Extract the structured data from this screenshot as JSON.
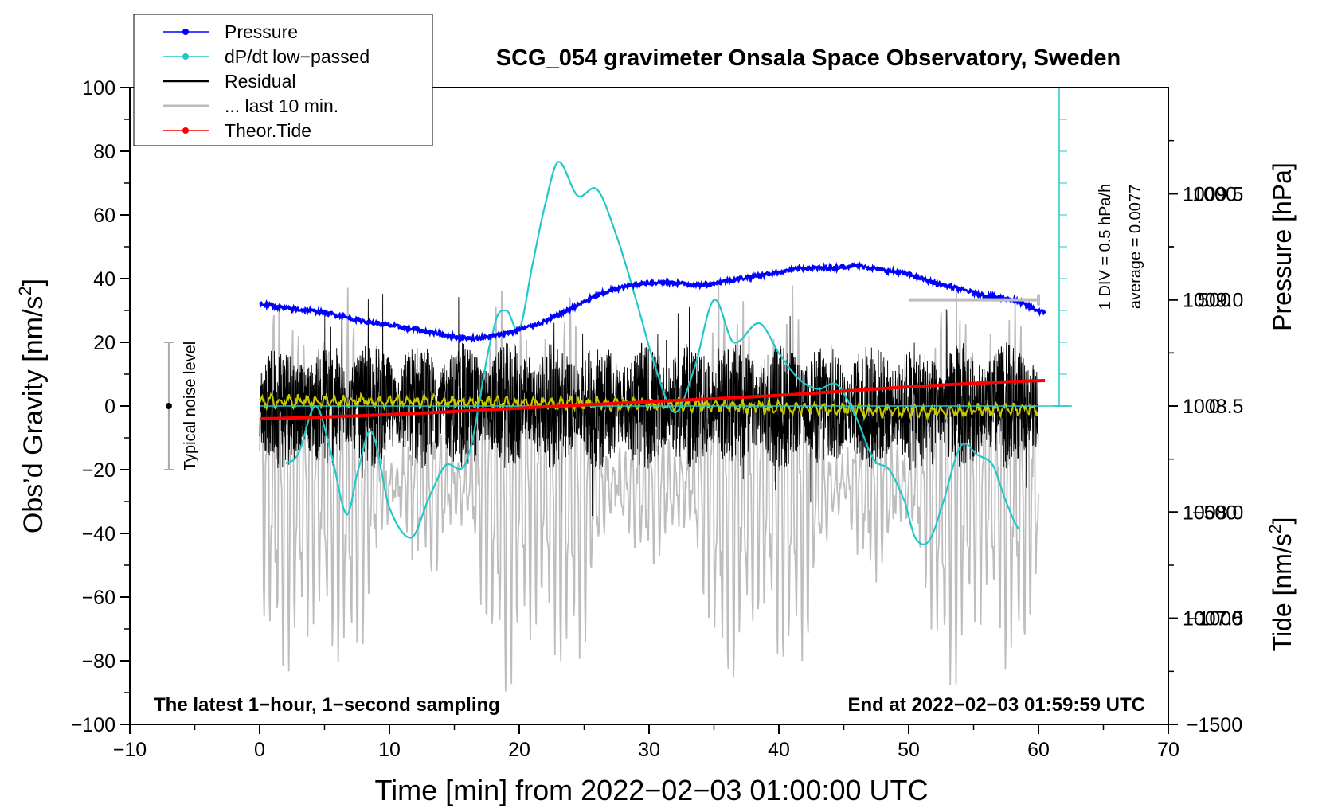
{
  "chart_data": {
    "type": "line",
    "title": "SCG_054 gravimeter Onsala Space Observatory, Sweden",
    "xlabel": "Time [min] from 2022−02−03 01:00:00 UTC",
    "ylabel_left": "Obs’d Gravity [nm/s",
    "ylabel_left_sup": "2",
    "ylabel_left_close": "]",
    "ylabel_pressure": "Pressure [hPa]",
    "ylabel_tide": "Tide [nm/s",
    "ylabel_tide_sup": "2",
    "ylabel_tide_close": "]",
    "xlim": [
      -10,
      70
    ],
    "ylim": [
      -100,
      100
    ],
    "x_ticks": [
      "−10",
      "0",
      "10",
      "20",
      "30",
      "40",
      "50",
      "60",
      "70"
    ],
    "x_tick_values": [
      -10,
      0,
      10,
      20,
      30,
      40,
      50,
      60,
      70
    ],
    "y_ticks": [
      "100",
      "80",
      "60",
      "40",
      "20",
      "0",
      "−20",
      "−40",
      "−60",
      "−80",
      "−100"
    ],
    "y_tick_values": [
      100,
      80,
      60,
      40,
      20,
      0,
      -20,
      -40,
      -60,
      -80,
      -100
    ],
    "pressure_axis": {
      "range": [
        1007.0,
        1010.0
      ],
      "ticks": [
        "1009.5",
        "1009.0",
        "1008.5",
        "1008.0",
        "1007.5"
      ],
      "tick_values": [
        1009.5,
        1009.0,
        1008.5,
        1008.0,
        1007.5
      ]
    },
    "tide_axis": {
      "range": [
        -1500,
        1500
      ],
      "ticks": [
        "1000",
        "500",
        "0",
        "−500",
        "−1000",
        "−1500"
      ],
      "tick_values": [
        1000,
        500,
        0,
        -500,
        -1000,
        -1500
      ]
    },
    "legend": [
      {
        "label": "Pressure",
        "color": "#0000ff",
        "marker": true
      },
      {
        "label": "dP/dt low−passed",
        "color": "#20c8c8",
        "marker": true
      },
      {
        "label": "Residual",
        "color": "#000000",
        "marker": false
      },
      {
        "label": "... last 10 min.",
        "color": "#bbbbbb",
        "marker": false
      },
      {
        "label": "Theor.Tide",
        "color": "#ff0000",
        "marker": true
      }
    ],
    "legend_position": "top-left",
    "annotations": {
      "noise_label": "Typical noise level",
      "noise_range": [
        -20,
        20
      ],
      "div_label": "1 DIV = 0.5 hPa/h",
      "average_label": "average = 0.0077",
      "bottom_left": "The latest 1−hour, 1−second sampling",
      "bottom_right": "End at 2022−02−03 01:59:59 UTC",
      "last10_bar_range_min": [
        50,
        60
      ]
    },
    "series": [
      {
        "name": "Pressure",
        "axis": "pressure",
        "color": "#0000ff",
        "x": [
          0,
          2,
          5,
          8,
          10,
          13,
          16,
          18,
          20,
          22,
          24,
          26,
          28,
          30,
          32,
          34,
          36,
          38,
          40,
          42,
          44,
          46,
          48,
          50,
          52,
          54,
          56,
          58,
          60.5
        ],
        "y": [
          1008.98,
          1008.96,
          1008.94,
          1008.9,
          1008.88,
          1008.85,
          1008.82,
          1008.83,
          1008.86,
          1008.9,
          1008.96,
          1009.02,
          1009.06,
          1009.08,
          1009.08,
          1009.07,
          1009.09,
          1009.11,
          1009.13,
          1009.15,
          1009.15,
          1009.16,
          1009.14,
          1009.12,
          1009.08,
          1009.05,
          1009.02,
          1009.0,
          1008.94
        ]
      },
      {
        "name": "dP/dt low-passed",
        "axis": "pressure",
        "color": "#20c8c8",
        "baseline": 1008.5,
        "x": [
          2,
          3,
          4.3,
          5.5,
          6.7,
          7.5,
          8.6,
          10,
          11.7,
          13,
          14.3,
          16,
          18,
          19,
          20,
          21,
          22,
          23,
          24.5,
          26,
          27.5,
          29,
          30.5,
          32,
          33.5,
          35,
          36.5,
          38.5,
          40,
          41.5,
          43,
          44.5,
          46,
          47.3,
          48.5,
          49.7,
          50.5,
          51.5,
          52.5,
          54,
          55.3,
          56.5,
          57.5,
          58.5
        ],
        "y": [
          1008.23,
          1008.28,
          1008.5,
          1008.28,
          1007.99,
          1008.18,
          1008.38,
          1008.02,
          1007.88,
          1008.06,
          1008.22,
          1008.25,
          1008.85,
          1008.95,
          1008.86,
          1009.16,
          1009.45,
          1009.65,
          1009.49,
          1009.52,
          1009.3,
          1009.0,
          1008.68,
          1008.47,
          1008.68,
          1009.0,
          1008.8,
          1008.89,
          1008.75,
          1008.63,
          1008.58,
          1008.6,
          1008.44,
          1008.25,
          1008.2,
          1008.05,
          1007.88,
          1007.86,
          1008.02,
          1008.31,
          1008.27,
          1008.22,
          1008.05,
          1007.92
        ]
      },
      {
        "name": "Residual",
        "axis": "gravity",
        "color": "#000000",
        "x_range": [
          0,
          60
        ],
        "typical_amplitude": 20,
        "peaks_max": 47,
        "peaks_min": -42
      },
      {
        "name": "Residual smoothed",
        "axis": "gravity",
        "color": "#c8c800",
        "x": [
          0,
          10,
          20,
          30,
          40,
          50,
          60
        ],
        "y": [
          1.5,
          1.5,
          1.0,
          0.5,
          -0.5,
          -1.5,
          -1.0
        ]
      },
      {
        "name": "Theor.Tide",
        "axis": "tide",
        "color": "#ff0000",
        "x": [
          0,
          10,
          20,
          30,
          40,
          50,
          60.5
        ],
        "y": [
          -60,
          -40,
          -10,
          20,
          50,
          90,
          120
        ]
      },
      {
        "name": "... last 10 min.",
        "axis": "tide",
        "color": "#bbbbbb",
        "x_range": [
          0,
          60
        ],
        "amplitude_range": [
          -1500,
          750
        ]
      }
    ]
  }
}
